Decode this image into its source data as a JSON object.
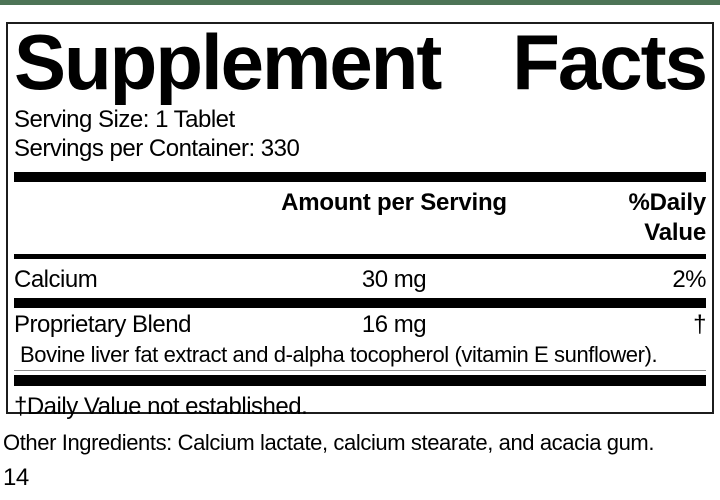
{
  "colors": {
    "top_bar_green": "#4d7456",
    "rule_black": "#000000",
    "border": "#1c1c1c"
  },
  "title": {
    "word1": "Supplement",
    "word2": "Facts"
  },
  "serving": {
    "size_line": "Serving Size: 1 Tablet",
    "container_line": "Servings per Container: 330"
  },
  "table": {
    "headers": {
      "amount": "Amount per Serving",
      "dv": "%Daily Value"
    },
    "rows": [
      {
        "name": "Calcium",
        "amount": "30 mg",
        "dv": "2%"
      },
      {
        "name": "Proprietary Blend",
        "amount": "16 mg",
        "dv": "†",
        "description": "Bovine liver fat extract and d-alpha tocopherol (vitamin E sunflower)."
      }
    ],
    "footnote": "†Daily Value not established."
  },
  "other_ingredients": "Other Ingredients: Calcium lactate, calcium stearate, and acacia gum.",
  "page_number": "14"
}
